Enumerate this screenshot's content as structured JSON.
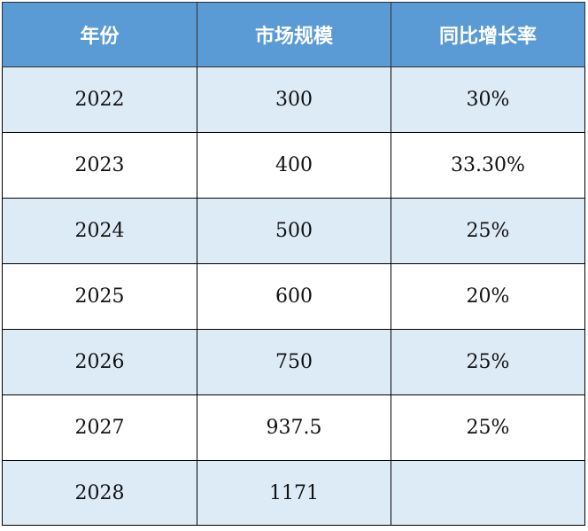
{
  "table": {
    "headers": [
      "年份",
      "市场规模",
      "同比增长率"
    ],
    "rows": [
      [
        "2022",
        "300",
        "30%"
      ],
      [
        "2023",
        "400",
        "33.30%"
      ],
      [
        "2024",
        "500",
        "25%"
      ],
      [
        "2025",
        "600",
        "20%"
      ],
      [
        "2026",
        "750",
        "25%"
      ],
      [
        "2027",
        "937.5",
        "25%"
      ],
      [
        "2028",
        "1171",
        ""
      ]
    ]
  },
  "colors": {
    "header_bg": "#5b9bd5",
    "header_text": "#ffffff",
    "band_bg": "#ddebf7",
    "row_bg": "#ffffff",
    "border": "#000000"
  }
}
